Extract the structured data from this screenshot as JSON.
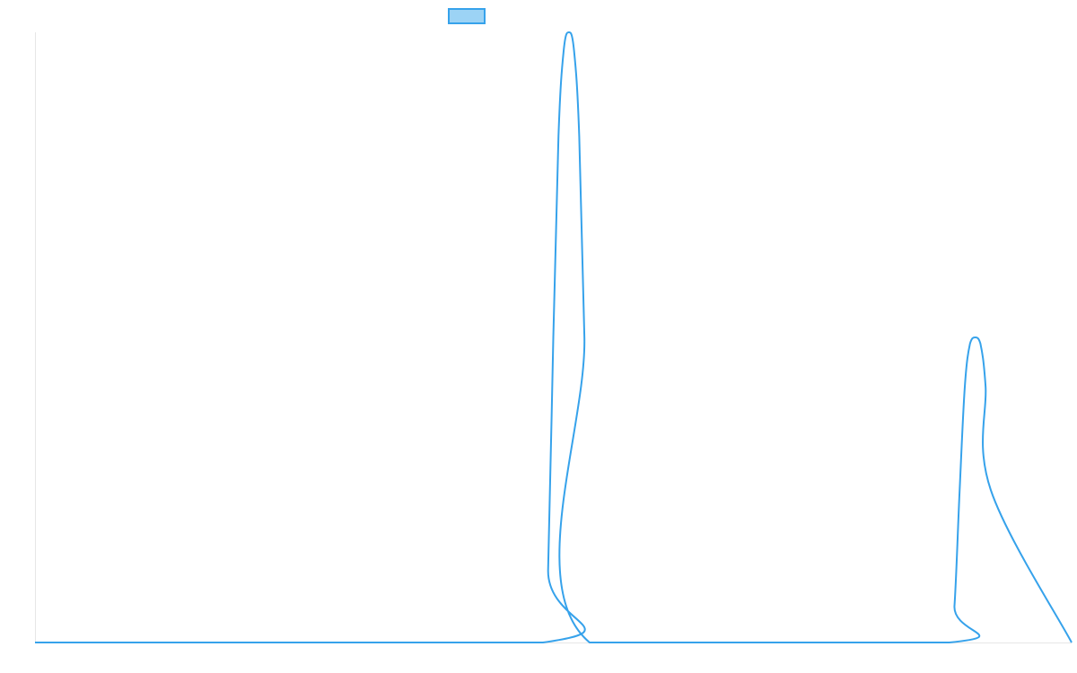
{
  "chart_data": {
    "type": "line",
    "title": "",
    "xlabel": "",
    "ylabel": "",
    "grid": false,
    "legend": {
      "placement": "top-center",
      "entries": [
        {
          "label": "",
          "swatch_fill": "#9cd3f5",
          "swatch_stroke": "#36a2eb"
        }
      ]
    },
    "xlim": [
      0,
      100
    ],
    "ylim": [
      0,
      1
    ],
    "series": [
      {
        "color": "#36a2eb",
        "x": [
          0,
          49,
          49.5,
          50,
          50.5,
          51,
          51.5,
          52,
          52.5,
          53,
          53.5,
          88.2,
          88.7,
          89.2,
          89.7,
          90.2,
          90.7,
          91.2,
          91.7,
          92.2,
          100
        ],
        "y": [
          0,
          0,
          0.12,
          0.5,
          0.83,
          0.97,
          1.0,
          0.97,
          0.83,
          0.5,
          0,
          0,
          0.06,
          0.25,
          0.42,
          0.49,
          0.5,
          0.49,
          0.42,
          0.25,
          0
        ]
      }
    ]
  }
}
